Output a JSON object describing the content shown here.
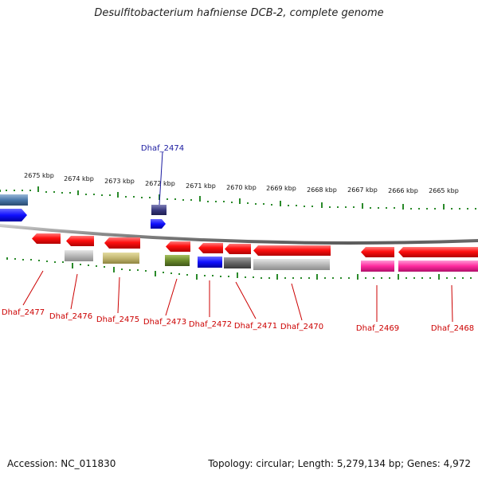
{
  "title": "Desulfitobacterium hafniense DCB-2, complete genome",
  "footer": {
    "accession": "Accession: NC_011830",
    "stats": "Topology: circular; Length: 5,279,134 bp; Genes: 4,972"
  },
  "colors": {
    "backbone": "#8a8a8a",
    "ticks": "#2a8a2a",
    "ruler_label": "#111111",
    "gene_label": "#cc0000",
    "highlight_label": "#1a1aa0"
  },
  "ruler_labels": [
    "2675 kbp",
    "2674 kbp",
    "2673 kbp",
    "2672 kbp",
    "2671 kbp",
    "2670 kbp",
    "2669 kbp",
    "2668 kbp",
    "2667 kbp",
    "2666 kbp",
    "2665 kbp"
  ],
  "gene_labels": [
    "Dhaf_2477",
    "Dhaf_2476",
    "Dhaf_2475",
    "Dhaf_2473",
    "Dhaf_2472",
    "Dhaf_2471",
    "Dhaf_2470",
    "Dhaf_2469",
    "Dhaf_2468"
  ],
  "highlight_label": "Dhaf_2474"
}
